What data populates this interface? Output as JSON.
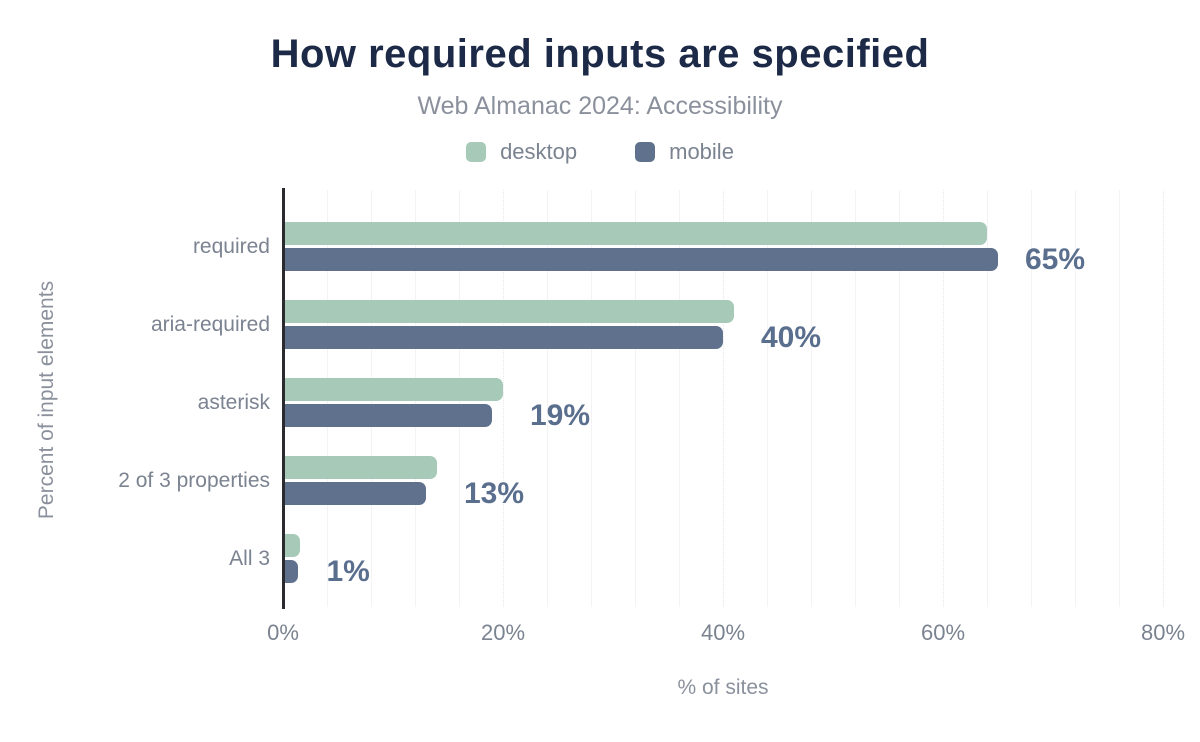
{
  "title": "How required inputs are specified",
  "subtitle": "Web Almanac 2024: Accessibility",
  "legend": {
    "items": [
      {
        "label": "desktop",
        "color": "#a7c9b8"
      },
      {
        "label": "mobile",
        "color": "#5f718c"
      }
    ]
  },
  "colors": {
    "title": "#1c2a47",
    "subtitle": "#8b919c",
    "axis_text": "#7b8391",
    "value_label": "#5a6e8e",
    "axis_line": "#2b2b2f",
    "gridline_minor": "#f3f3f5",
    "gridline_major": "#e7e8ec",
    "desktop": "#a7c9b8",
    "mobile": "#5f718c"
  },
  "chart_data": {
    "type": "bar",
    "orientation": "horizontal",
    "title": "How required inputs are specified",
    "subtitle": "Web Almanac 2024: Accessibility",
    "categories": [
      "required",
      "aria-required",
      "asterisk",
      "2 of 3 properties",
      "All 3"
    ],
    "series": [
      {
        "name": "desktop",
        "color": "#a7c9b8",
        "values": [
          64,
          41,
          20,
          14,
          1.5
        ]
      },
      {
        "name": "mobile",
        "color": "#5f718c",
        "values": [
          65,
          40,
          19,
          13,
          1.4
        ]
      }
    ],
    "data_labels": [
      "65%",
      "40%",
      "19%",
      "13%",
      "1%"
    ],
    "xlabel": "% of sites",
    "ylabel": "Percent of input elements",
    "xlim": [
      0,
      80
    ],
    "xtick_labels": [
      "0%",
      "20%",
      "40%",
      "60%",
      "80%"
    ],
    "xtick_values": [
      0,
      20,
      40,
      60,
      80
    ],
    "grid": {
      "minor_step_pct": 4,
      "major_step_pct": 20,
      "vertical_only": true
    },
    "legend_position": "top"
  }
}
